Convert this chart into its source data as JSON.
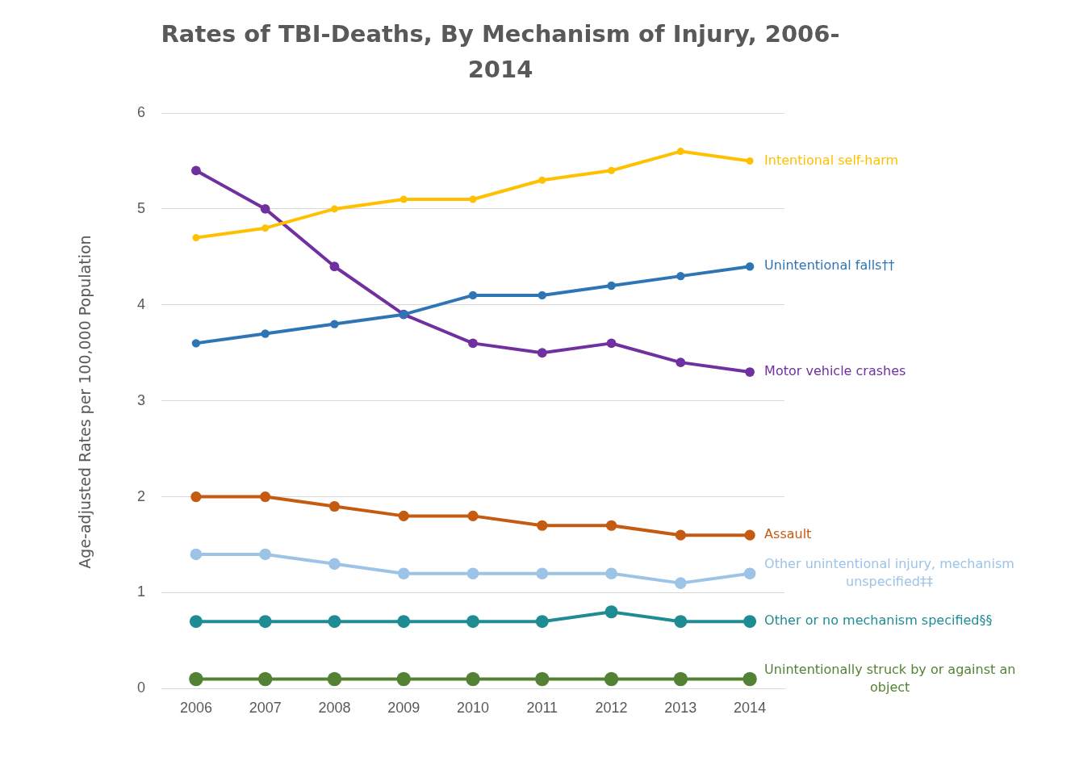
{
  "chart_data": {
    "type": "line",
    "title": "Rates of TBI-Deaths, By Mechanism of Injury, 2006-2014",
    "ylabel": "Age-adjusted Rates per 100,000 Population",
    "categories": [
      "2006",
      "2007",
      "2008",
      "2009",
      "2010",
      "2011",
      "2012",
      "2013",
      "2014"
    ],
    "series": [
      {
        "name": "Intentional self-harm",
        "color": "#ffc000",
        "values": [
          4.7,
          4.8,
          5.0,
          5.1,
          5.1,
          5.3,
          5.4,
          5.6,
          5.5
        ]
      },
      {
        "name": "Unintentional falls††",
        "color": "#2e75b6",
        "values": [
          3.6,
          3.7,
          3.8,
          3.9,
          4.1,
          4.1,
          4.2,
          4.3,
          4.4
        ]
      },
      {
        "name": "Motor vehicle crashes",
        "color": "#7030a0",
        "values": [
          5.4,
          5.0,
          4.4,
          3.9,
          3.6,
          3.5,
          3.6,
          3.4,
          3.3
        ]
      },
      {
        "name": "Assault",
        "color": "#c55a11",
        "values": [
          2.0,
          2.0,
          1.9,
          1.8,
          1.8,
          1.7,
          1.7,
          1.6,
          1.6
        ]
      },
      {
        "name": "Other unintentional injury, mechanism unspecified‡‡",
        "color": "#9dc3e6",
        "values": [
          1.4,
          1.4,
          1.3,
          1.2,
          1.2,
          1.2,
          1.2,
          1.1,
          1.2
        ]
      },
      {
        "name": "Other or no mechanism specified§§",
        "color": "#1f8c93",
        "values": [
          0.7,
          0.7,
          0.7,
          0.7,
          0.7,
          0.7,
          0.8,
          0.7,
          0.7
        ]
      },
      {
        "name": "Unintentionally struck by or against an object",
        "color": "#548235",
        "values": [
          0.1,
          0.1,
          0.1,
          0.1,
          0.1,
          0.1,
          0.1,
          0.1,
          0.1
        ]
      }
    ],
    "ylim": [
      0,
      6
    ],
    "yticks": [
      0,
      1,
      2,
      3,
      4,
      5,
      6
    ],
    "grid": "y",
    "legend": false,
    "marker": "circle",
    "line_style": "solid"
  }
}
